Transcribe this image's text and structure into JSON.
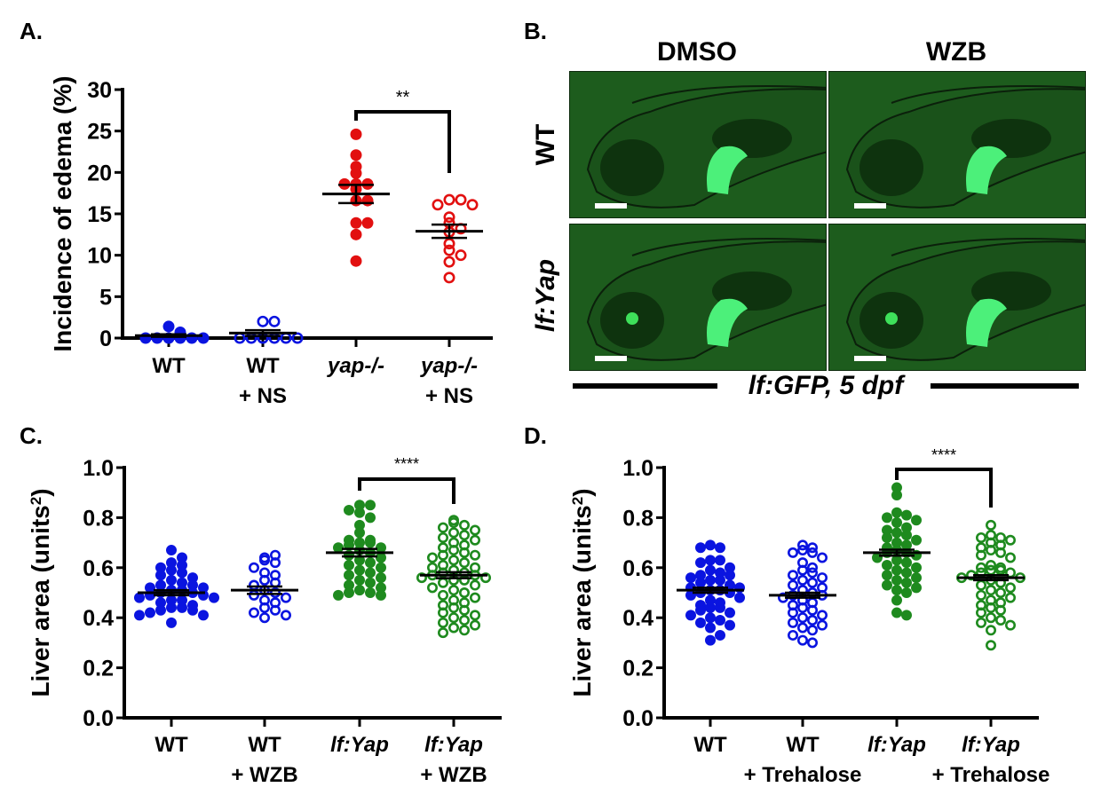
{
  "panels": {
    "A": {
      "label": "A."
    },
    "B": {
      "label": "B."
    },
    "C": {
      "label": "C."
    },
    "D": {
      "label": "D."
    }
  },
  "panel_b": {
    "columns": [
      "DMSO",
      "WZB"
    ],
    "rows": [
      "WT",
      "lf:Yap"
    ],
    "caption": "lf:GFP, 5 dpf",
    "images": [
      {
        "row": "WT",
        "col": "DMSO",
        "eye_glow": false
      },
      {
        "row": "WT",
        "col": "WZB",
        "eye_glow": false
      },
      {
        "row": "lf:Yap",
        "col": "DMSO",
        "eye_glow": true
      },
      {
        "row": "lf:Yap",
        "col": "WZB",
        "eye_glow": true
      }
    ]
  },
  "colors": {
    "blue": "#0a14e0",
    "red": "#e21010",
    "green": "#1e8a1e",
    "image_bg": "#1d5c1d",
    "liver": "#4cf07a"
  },
  "chart_data": [
    {
      "id": "A",
      "type": "scatter",
      "title": "",
      "ylabel": "Incidence of edema (%)",
      "xlabel": "",
      "ylim": [
        0,
        30
      ],
      "yticks": [
        0,
        5,
        10,
        15,
        20,
        25,
        30
      ],
      "ytick_labels": [
        "0",
        "5",
        "10",
        "15",
        "20",
        "25",
        "30"
      ],
      "categories": [
        {
          "line1": "WT",
          "line2": "",
          "italic": false
        },
        {
          "line1": "WT",
          "line2": "+ NS",
          "italic": false
        },
        {
          "line1": "yap-/-",
          "line2": "",
          "italic": true
        },
        {
          "line1": "yap-/-",
          "line2": "+ NS",
          "italic": true
        }
      ],
      "series": [
        {
          "name": "WT",
          "color": "blue",
          "filled": true,
          "mean": 0.3,
          "sem": 0.15,
          "values": [
            1.4,
            0,
            0,
            0,
            0,
            0,
            0,
            0.7
          ]
        },
        {
          "name": "WT + NS",
          "color": "blue",
          "filled": false,
          "mean": 0.6,
          "sem": 0.35,
          "values": [
            0,
            0,
            0,
            0,
            0,
            0,
            2.0,
            2.0
          ]
        },
        {
          "name": "yap-/-",
          "color": "red",
          "filled": true,
          "mean": 17.4,
          "sem": 1.1,
          "values": [
            24.6,
            22.1,
            20.7,
            19.9,
            18.6,
            18.6,
            18.6,
            18.0,
            16.6,
            16.6,
            13.9,
            13.9,
            12.5,
            9.3
          ]
        },
        {
          "name": "yap-/- + NS",
          "color": "red",
          "filled": false,
          "mean": 12.9,
          "sem": 0.8,
          "values": [
            16.7,
            16.7,
            16.1,
            16.1,
            14.6,
            13.9,
            13.2,
            12.8,
            11.4,
            10.6,
            10.0,
            9.2,
            7.3
          ]
        }
      ],
      "significance": {
        "between": [
          2,
          3
        ],
        "label": "**"
      }
    },
    {
      "id": "C",
      "type": "scatter",
      "title": "",
      "ylabel": "Liver area (units²)",
      "xlabel": "",
      "ylim": [
        0,
        1.0
      ],
      "yticks": [
        0,
        0.2,
        0.4,
        0.6,
        0.8,
        1.0
      ],
      "ytick_labels": [
        "0.0",
        "0.2",
        "0.4",
        "0.6",
        "0.8",
        "1.0"
      ],
      "categories": [
        {
          "line1": "WT",
          "line2": "",
          "italic": false
        },
        {
          "line1": "WT",
          "line2": "+ WZB",
          "italic": false
        },
        {
          "line1": "lf:Yap",
          "line2": "",
          "italic": true
        },
        {
          "line1": "lf:Yap",
          "line2": "+ WZB",
          "italic": true
        }
      ],
      "series": [
        {
          "name": "WT",
          "color": "blue",
          "filled": true,
          "mean": 0.5,
          "sem": 0.01,
          "values": [
            0.67,
            0.64,
            0.62,
            0.61,
            0.6,
            0.59,
            0.58,
            0.57,
            0.56,
            0.55,
            0.54,
            0.53,
            0.53,
            0.52,
            0.52,
            0.51,
            0.51,
            0.5,
            0.5,
            0.49,
            0.49,
            0.48,
            0.48,
            0.47,
            0.47,
            0.46,
            0.45,
            0.44,
            0.44,
            0.43,
            0.43,
            0.42,
            0.41,
            0.41,
            0.38
          ]
        },
        {
          "name": "WT + WZB",
          "color": "blue",
          "filled": false,
          "mean": 0.51,
          "sem": 0.015,
          "values": [
            0.64,
            0.65,
            0.63,
            0.62,
            0.6,
            0.58,
            0.57,
            0.55,
            0.54,
            0.53,
            0.51,
            0.5,
            0.49,
            0.48,
            0.47,
            0.46,
            0.44,
            0.43,
            0.42,
            0.41,
            0.4
          ]
        },
        {
          "name": "lf:Yap",
          "color": "green",
          "filled": true,
          "mean": 0.66,
          "sem": 0.015,
          "values": [
            0.85,
            0.85,
            0.83,
            0.82,
            0.8,
            0.77,
            0.74,
            0.71,
            0.71,
            0.7,
            0.7,
            0.69,
            0.68,
            0.68,
            0.67,
            0.66,
            0.65,
            0.64,
            0.63,
            0.62,
            0.61,
            0.6,
            0.59,
            0.58,
            0.57,
            0.56,
            0.55,
            0.54,
            0.53,
            0.52,
            0.51,
            0.5,
            0.5,
            0.49,
            0.49
          ]
        },
        {
          "name": "lf:Yap + WZB",
          "color": "green",
          "filled": false,
          "mean": 0.57,
          "sem": 0.012,
          "values": [
            0.79,
            0.78,
            0.77,
            0.76,
            0.75,
            0.74,
            0.73,
            0.72,
            0.71,
            0.7,
            0.69,
            0.68,
            0.67,
            0.66,
            0.65,
            0.65,
            0.64,
            0.63,
            0.62,
            0.61,
            0.6,
            0.6,
            0.59,
            0.58,
            0.58,
            0.57,
            0.57,
            0.56,
            0.56,
            0.55,
            0.55,
            0.54,
            0.53,
            0.52,
            0.51,
            0.5,
            0.49,
            0.48,
            0.47,
            0.46,
            0.45,
            0.44,
            0.43,
            0.42,
            0.41,
            0.4,
            0.39,
            0.38,
            0.37,
            0.36,
            0.35,
            0.34
          ]
        }
      ],
      "significance": {
        "between": [
          2,
          3
        ],
        "label": "****"
      }
    },
    {
      "id": "D",
      "type": "scatter",
      "title": "",
      "ylabel": "Liver area (units²)",
      "xlabel": "",
      "ylim": [
        0,
        1.0
      ],
      "yticks": [
        0,
        0.2,
        0.4,
        0.6,
        0.8,
        1.0
      ],
      "ytick_labels": [
        "0.0",
        "0.2",
        "0.4",
        "0.6",
        "0.8",
        "1.0"
      ],
      "categories": [
        {
          "line1": "WT",
          "line2": "",
          "italic": false
        },
        {
          "line1": "WT",
          "line2": "+ Trehalose",
          "italic": false
        },
        {
          "line1": "lf:Yap",
          "line2": "",
          "italic": true
        },
        {
          "line1": "lf:Yap",
          "line2": "+ Trehalose",
          "italic": true
        }
      ],
      "series": [
        {
          "name": "WT",
          "color": "blue",
          "filled": true,
          "mean": 0.51,
          "sem": 0.01,
          "values": [
            0.69,
            0.68,
            0.68,
            0.63,
            0.63,
            0.62,
            0.6,
            0.59,
            0.58,
            0.57,
            0.57,
            0.56,
            0.55,
            0.55,
            0.54,
            0.53,
            0.52,
            0.52,
            0.51,
            0.51,
            0.5,
            0.5,
            0.49,
            0.48,
            0.47,
            0.46,
            0.45,
            0.44,
            0.44,
            0.43,
            0.42,
            0.41,
            0.4,
            0.39,
            0.38,
            0.37,
            0.36,
            0.33,
            0.31
          ]
        },
        {
          "name": "WT + Trehalose",
          "color": "blue",
          "filled": false,
          "mean": 0.49,
          "sem": 0.01,
          "values": [
            0.69,
            0.68,
            0.67,
            0.66,
            0.66,
            0.64,
            0.62,
            0.6,
            0.59,
            0.58,
            0.57,
            0.56,
            0.55,
            0.54,
            0.53,
            0.52,
            0.51,
            0.5,
            0.49,
            0.49,
            0.48,
            0.47,
            0.46,
            0.45,
            0.44,
            0.43,
            0.42,
            0.41,
            0.4,
            0.39,
            0.38,
            0.37,
            0.36,
            0.35,
            0.33,
            0.31,
            0.3
          ]
        },
        {
          "name": "lf:Yap",
          "color": "green",
          "filled": true,
          "mean": 0.66,
          "sem": 0.012,
          "values": [
            0.92,
            0.89,
            0.82,
            0.81,
            0.8,
            0.79,
            0.78,
            0.76,
            0.75,
            0.74,
            0.73,
            0.72,
            0.71,
            0.7,
            0.69,
            0.68,
            0.67,
            0.66,
            0.66,
            0.65,
            0.64,
            0.63,
            0.62,
            0.61,
            0.6,
            0.59,
            0.58,
            0.57,
            0.56,
            0.55,
            0.54,
            0.53,
            0.52,
            0.51,
            0.5,
            0.47,
            0.42,
            0.41
          ]
        },
        {
          "name": "lf:Yap + Trehalose",
          "color": "green",
          "filled": false,
          "mean": 0.56,
          "sem": 0.01,
          "values": [
            0.77,
            0.73,
            0.72,
            0.72,
            0.71,
            0.7,
            0.69,
            0.68,
            0.67,
            0.66,
            0.65,
            0.64,
            0.61,
            0.6,
            0.6,
            0.59,
            0.59,
            0.58,
            0.58,
            0.57,
            0.56,
            0.56,
            0.55,
            0.54,
            0.53,
            0.52,
            0.51,
            0.5,
            0.49,
            0.48,
            0.47,
            0.46,
            0.45,
            0.44,
            0.43,
            0.42,
            0.4,
            0.39,
            0.38,
            0.37,
            0.35,
            0.29
          ]
        }
      ],
      "significance": {
        "between": [
          2,
          3
        ],
        "label": "****"
      }
    }
  ]
}
